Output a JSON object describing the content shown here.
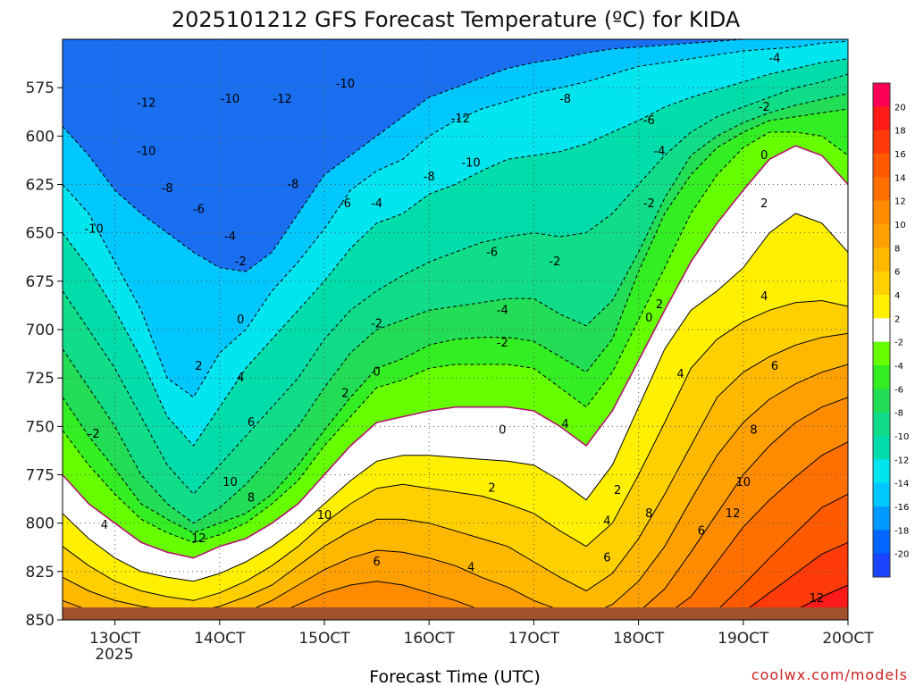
{
  "chart_data": {
    "type": "heatmap",
    "title": "2025101212 GFS Forecast Temperature (ºC) for KIDA",
    "xlabel": "Forecast Time (UTC)",
    "ylabel": "",
    "x_range": [
      "2025-10-12 12Z",
      "2025-10-20 00Z"
    ],
    "y_range": [
      850,
      550
    ],
    "y_axis": "pressure (hPa), inverted",
    "x_tick_labels": [
      "13OCT",
      "14OCT",
      "15OCT",
      "16OCT",
      "17OCT",
      "18OCT",
      "19OCT",
      "20OCT"
    ],
    "x_sublabel": "2025",
    "y_tick_labels": [
      "575",
      "600",
      "625",
      "650",
      "675",
      "700",
      "725",
      "750",
      "775",
      "800",
      "825",
      "850"
    ],
    "colorbar": {
      "labels": [
        "20",
        "18",
        "16",
        "14",
        "12",
        "10",
        "8",
        "6",
        "4",
        "2",
        "-2",
        "-4",
        "-6",
        "-8",
        "-10",
        "-12",
        "-14",
        "-16",
        "-18",
        "-20"
      ],
      "colors": [
        "#ff0055",
        "#ff1a1a",
        "#ff3b0a",
        "#ff5a00",
        "#ff7000",
        "#ff8c00",
        "#ffa000",
        "#ffb800",
        "#ffd000",
        "#ffef00",
        "#ffffff",
        "#66ff00",
        "#33ee22",
        "#22dd55",
        "#11dd88",
        "#00ddaa",
        "#00e5ee",
        "#00c8ff",
        "#0099ff",
        "#0066ff",
        "#1a44ff"
      ]
    },
    "grid": true,
    "levels": [
      {
        "t": -14,
        "color": "#00c8ff",
        "p": [
          595,
          610,
          628,
          640,
          650,
          660,
          668,
          670,
          660,
          640,
          620,
          610,
          600,
          590,
          580,
          575,
          570,
          565,
          562,
          560,
          557,
          555,
          554,
          553,
          552,
          551,
          550,
          550,
          550,
          550,
          550
        ]
      },
      {
        "t": -12,
        "color": "#00e5ee",
        "p": [
          625,
          640,
          665,
          690,
          725,
          735,
          712,
          700,
          680,
          665,
          648,
          628,
          618,
          612,
          600,
          592,
          586,
          582,
          578,
          575,
          572,
          568,
          564,
          562,
          560,
          558,
          556,
          555,
          554,
          552,
          551
        ]
      },
      {
        "t": -10,
        "color": "#00ddaa",
        "p": [
          650,
          668,
          690,
          715,
          745,
          760,
          740,
          720,
          705,
          690,
          675,
          658,
          645,
          640,
          630,
          625,
          618,
          612,
          610,
          608,
          604,
          598,
          592,
          585,
          580,
          576,
          572,
          568,
          565,
          562,
          560
        ]
      },
      {
        "t": -8,
        "color": "#11dd88",
        "p": [
          680,
          700,
          720,
          745,
          770,
          785,
          770,
          755,
          740,
          725,
          705,
          690,
          680,
          672,
          665,
          660,
          655,
          652,
          650,
          652,
          650,
          640,
          625,
          610,
          598,
          590,
          585,
          580,
          575,
          572,
          568
        ]
      },
      {
        "t": -6,
        "color": "#22dd55",
        "p": [
          710,
          730,
          750,
          775,
          790,
          800,
          792,
          780,
          765,
          750,
          730,
          712,
          700,
          695,
          690,
          688,
          686,
          684,
          684,
          692,
          698,
          685,
          660,
          632,
          610,
          600,
          593,
          588,
          584,
          581,
          578
        ]
      },
      {
        "t": -4,
        "color": "#33ee22",
        "p": [
          735,
          755,
          772,
          790,
          798,
          805,
          800,
          795,
          785,
          770,
          752,
          735,
          720,
          715,
          708,
          705,
          704,
          704,
          706,
          714,
          722,
          705,
          670,
          640,
          620,
          606,
          598,
          592,
          590,
          588,
          586
        ]
      },
      {
        "t": -2,
        "color": "#66ff00",
        "p": [
          752,
          770,
          785,
          798,
          805,
          810,
          806,
          800,
          790,
          778,
          760,
          745,
          730,
          726,
          720,
          718,
          718,
          718,
          720,
          730,
          740,
          722,
          695,
          668,
          640,
          620,
          606,
          598,
          598,
          600,
          610
        ]
      },
      {
        "t": 0,
        "color": "#ffffff",
        "p": [
          775,
          790,
          800,
          810,
          815,
          818,
          812,
          808,
          800,
          790,
          775,
          760,
          748,
          745,
          742,
          740,
          740,
          740,
          742,
          750,
          760,
          742,
          716,
          690,
          665,
          645,
          628,
          612,
          605,
          610,
          625
        ]
      },
      {
        "t": 2,
        "color": "#ffef00",
        "p": [
          795,
          808,
          818,
          825,
          828,
          830,
          826,
          820,
          812,
          802,
          790,
          778,
          768,
          765,
          765,
          766,
          767,
          768,
          770,
          778,
          788,
          770,
          740,
          710,
          690,
          680,
          668,
          650,
          640,
          645,
          660
        ]
      },
      {
        "t": 4,
        "color": "#ffd000",
        "p": [
          812,
          822,
          830,
          835,
          838,
          840,
          836,
          830,
          822,
          812,
          800,
          790,
          782,
          780,
          782,
          784,
          786,
          790,
          795,
          804,
          812,
          800,
          775,
          748,
          720,
          705,
          696,
          690,
          686,
          685,
          688
        ]
      },
      {
        "t": 6,
        "color": "#ffb800",
        "p": [
          828,
          835,
          840,
          843,
          845,
          846,
          843,
          838,
          832,
          822,
          812,
          804,
          798,
          798,
          800,
          804,
          808,
          812,
          820,
          828,
          835,
          826,
          808,
          785,
          760,
          735,
          722,
          714,
          708,
          704,
          702
        ]
      },
      {
        "t": 8,
        "color": "#ffa000",
        "p": [
          840,
          845,
          848,
          849,
          850,
          850,
          849,
          846,
          840,
          832,
          824,
          818,
          814,
          815,
          818,
          822,
          828,
          833,
          840,
          845,
          848,
          842,
          830,
          812,
          788,
          765,
          748,
          736,
          728,
          722,
          718
        ]
      },
      {
        "t": 10,
        "color": "#ff8c00",
        "p": [
          850,
          850,
          850,
          850,
          850,
          850,
          850,
          850,
          848,
          842,
          836,
          832,
          830,
          832,
          836,
          840,
          845,
          848,
          850,
          850,
          850,
          850,
          846,
          834,
          815,
          795,
          775,
          760,
          748,
          740,
          735
        ]
      },
      {
        "t": 12,
        "color": "#ff7000",
        "p": [
          850,
          850,
          850,
          850,
          850,
          850,
          850,
          850,
          850,
          850,
          848,
          845,
          844,
          846,
          849,
          850,
          850,
          850,
          850,
          850,
          850,
          850,
          850,
          848,
          838,
          820,
          802,
          788,
          776,
          765,
          758
        ]
      },
      {
        "t": 14,
        "color": "#ff5a00",
        "p": [
          850,
          850,
          850,
          850,
          850,
          850,
          850,
          850,
          850,
          850,
          850,
          850,
          850,
          850,
          850,
          850,
          850,
          850,
          850,
          850,
          850,
          850,
          850,
          850,
          850,
          845,
          832,
          818,
          805,
          792,
          785
        ]
      },
      {
        "t": 16,
        "color": "#ff3b0a",
        "p": [
          850,
          850,
          850,
          850,
          850,
          850,
          850,
          850,
          850,
          850,
          850,
          850,
          850,
          850,
          850,
          850,
          850,
          850,
          850,
          850,
          850,
          850,
          850,
          850,
          850,
          850,
          846,
          836,
          826,
          816,
          810
        ]
      },
      {
        "t": 18,
        "color": "#ff1a1a",
        "p": [
          850,
          850,
          850,
          850,
          850,
          850,
          850,
          850,
          850,
          850,
          850,
          850,
          850,
          850,
          850,
          850,
          850,
          850,
          850,
          850,
          850,
          850,
          850,
          850,
          850,
          850,
          850,
          850,
          845,
          838,
          832
        ]
      }
    ],
    "contour_labels": [
      {
        "text": "-12",
        "x": 13.3,
        "y": 583
      },
      {
        "text": "-10",
        "x": 14.1,
        "y": 581
      },
      {
        "text": "-12",
        "x": 14.6,
        "y": 581
      },
      {
        "text": "-10",
        "x": 15.2,
        "y": 573
      },
      {
        "text": "-12",
        "x": 16.3,
        "y": 591
      },
      {
        "text": "-8",
        "x": 17.3,
        "y": 581
      },
      {
        "text": "-6",
        "x": 18.1,
        "y": 592
      },
      {
        "text": "-4",
        "x": 19.3,
        "y": 560
      },
      {
        "text": "-10",
        "x": 13.3,
        "y": 608
      },
      {
        "text": "-8",
        "x": 13.5,
        "y": 627
      },
      {
        "text": "-6",
        "x": 13.8,
        "y": 638
      },
      {
        "text": "-10",
        "x": 12.8,
        "y": 648
      },
      {
        "text": "-8",
        "x": 14.7,
        "y": 625
      },
      {
        "text": "-6",
        "x": 15.2,
        "y": 635
      },
      {
        "text": "-4",
        "x": 15.5,
        "y": 635
      },
      {
        "text": "-8",
        "x": 16.0,
        "y": 621
      },
      {
        "text": "-10",
        "x": 16.4,
        "y": 614
      },
      {
        "text": "-4",
        "x": 18.2,
        "y": 608
      },
      {
        "text": "-2",
        "x": 19.2,
        "y": 585
      },
      {
        "text": "0",
        "x": 19.2,
        "y": 610
      },
      {
        "text": "-2",
        "x": 18.1,
        "y": 635
      },
      {
        "text": "2",
        "x": 19.2,
        "y": 635
      },
      {
        "text": "-4",
        "x": 14.1,
        "y": 652
      },
      {
        "text": "-2",
        "x": 14.2,
        "y": 665
      },
      {
        "text": "-6",
        "x": 16.6,
        "y": 660
      },
      {
        "text": "-4",
        "x": 16.7,
        "y": 690
      },
      {
        "text": "-2",
        "x": 16.7,
        "y": 707
      },
      {
        "text": "-2",
        "x": 17.2,
        "y": 665
      },
      {
        "text": "0",
        "x": 18.1,
        "y": 694
      },
      {
        "text": "2",
        "x": 18.2,
        "y": 687
      },
      {
        "text": "4",
        "x": 19.2,
        "y": 683
      },
      {
        "text": "0",
        "x": 14.2,
        "y": 695
      },
      {
        "text": "-2",
        "x": 15.5,
        "y": 697
      },
      {
        "text": "2",
        "x": 13.8,
        "y": 719
      },
      {
        "text": "0",
        "x": 15.5,
        "y": 722
      },
      {
        "text": "4",
        "x": 14.2,
        "y": 725
      },
      {
        "text": "2",
        "x": 15.2,
        "y": 733
      },
      {
        "text": "0",
        "x": 16.7,
        "y": 752
      },
      {
        "text": "-2",
        "x": 12.8,
        "y": 754
      },
      {
        "text": "4",
        "x": 17.3,
        "y": 749
      },
      {
        "text": "4",
        "x": 18.4,
        "y": 723
      },
      {
        "text": "6",
        "x": 19.3,
        "y": 719
      },
      {
        "text": "6",
        "x": 14.3,
        "y": 748
      },
      {
        "text": "8",
        "x": 19.1,
        "y": 752
      },
      {
        "text": "10",
        "x": 14.1,
        "y": 779
      },
      {
        "text": "8",
        "x": 14.3,
        "y": 787
      },
      {
        "text": "10",
        "x": 19.0,
        "y": 779
      },
      {
        "text": "2",
        "x": 16.6,
        "y": 782
      },
      {
        "text": "2",
        "x": 17.8,
        "y": 783
      },
      {
        "text": "10",
        "x": 15.0,
        "y": 796
      },
      {
        "text": "8",
        "x": 18.1,
        "y": 795
      },
      {
        "text": "12",
        "x": 18.9,
        "y": 795
      },
      {
        "text": "4",
        "x": 12.9,
        "y": 801
      },
      {
        "text": "4",
        "x": 17.7,
        "y": 799
      },
      {
        "text": "6",
        "x": 18.6,
        "y": 804
      },
      {
        "text": "12",
        "x": 13.8,
        "y": 808
      },
      {
        "text": "6",
        "x": 15.5,
        "y": 820
      },
      {
        "text": "4",
        "x": 16.4,
        "y": 823
      },
      {
        "text": "6",
        "x": 17.7,
        "y": 818
      },
      {
        "text": "12",
        "x": 19.7,
        "y": 839
      }
    ],
    "credit": "coolwx.com/models"
  }
}
